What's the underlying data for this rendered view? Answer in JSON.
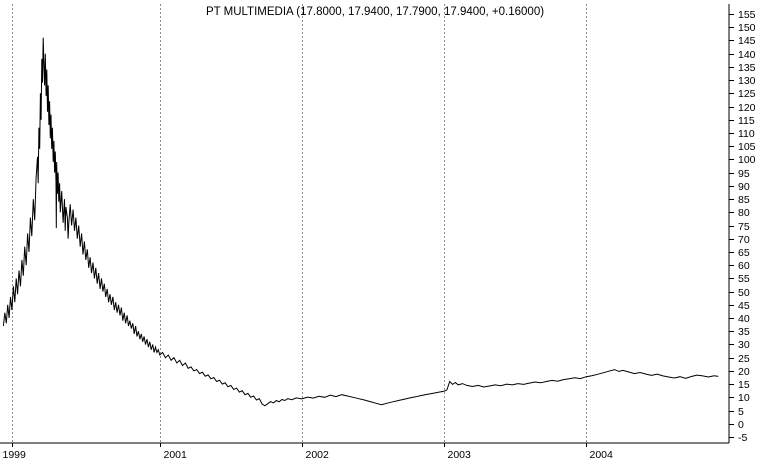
{
  "title": "PT MULTIMEDIA (17.8000, 17.9400, 17.7900, 17.9400, +0.16000)",
  "colors": {
    "background": "#ffffff",
    "line": "#000000",
    "grid": "#8f8f8f",
    "axis": "#000000",
    "text": "#000000"
  },
  "quote": {
    "symbol": "PT MULTIMEDIA",
    "open": "17.8000",
    "high": "17.9400",
    "low": "17.7900",
    "close": "17.9400",
    "change": "+0.16000"
  },
  "chart_data": {
    "type": "line",
    "title": "PT MULTIMEDIA (17.8000, 17.9400, 17.7900, 17.9400, +0.16000)",
    "xlabel": "",
    "ylabel": "",
    "grid": "vertical-dashed",
    "legend": "none",
    "x_axis": {
      "range": [
        1999.876,
        2005.005
      ],
      "ticks": [
        {
          "label": "1999",
          "year": 1999.96
        },
        {
          "label": "2001",
          "year": 2001
        },
        {
          "label": "2002",
          "year": 2002
        },
        {
          "label": "2003",
          "year": 2003
        },
        {
          "label": "2004",
          "year": 2004
        }
      ]
    },
    "y_axis": {
      "min": -5,
      "max": 155,
      "step": 5,
      "tick_labels": [
        155,
        150,
        145,
        140,
        135,
        130,
        125,
        120,
        115,
        110,
        105,
        100,
        95,
        90,
        85,
        80,
        75,
        70,
        65,
        60,
        55,
        50,
        45,
        40,
        35,
        30,
        25,
        20,
        15,
        10,
        5,
        0,
        -5
      ]
    },
    "series": [
      {
        "name": "PT MULTIMEDIA",
        "points": [
          [
            1999.9,
            37
          ],
          [
            1999.91,
            42
          ],
          [
            1999.92,
            38
          ],
          [
            1999.93,
            45
          ],
          [
            1999.94,
            40
          ],
          [
            1999.95,
            48
          ],
          [
            1999.96,
            43
          ],
          [
            1999.97,
            52
          ],
          [
            1999.98,
            46
          ],
          [
            1999.99,
            55
          ],
          [
            2000.0,
            49
          ],
          [
            2000.01,
            58
          ],
          [
            2000.02,
            52
          ],
          [
            2000.03,
            62
          ],
          [
            2000.04,
            56
          ],
          [
            2000.05,
            67
          ],
          [
            2000.06,
            60
          ],
          [
            2000.07,
            72
          ],
          [
            2000.08,
            65
          ],
          [
            2000.09,
            78
          ],
          [
            2000.1,
            71
          ],
          [
            2000.11,
            85
          ],
          [
            2000.12,
            77
          ],
          [
            2000.13,
            93
          ],
          [
            2000.14,
            101
          ],
          [
            2000.145,
            91
          ],
          [
            2000.15,
            112
          ],
          [
            2000.155,
            104
          ],
          [
            2000.16,
            125
          ],
          [
            2000.165,
            115
          ],
          [
            2000.17,
            138
          ],
          [
            2000.175,
            129
          ],
          [
            2000.18,
            146
          ],
          [
            2000.185,
            136
          ],
          [
            2000.19,
            128
          ],
          [
            2000.195,
            140
          ],
          [
            2000.2,
            124
          ],
          [
            2000.205,
            134
          ],
          [
            2000.21,
            118
          ],
          [
            2000.215,
            128
          ],
          [
            2000.22,
            113
          ],
          [
            2000.225,
            122
          ],
          [
            2000.23,
            108
          ],
          [
            2000.235,
            117
          ],
          [
            2000.24,
            104
          ],
          [
            2000.245,
            112
          ],
          [
            2000.25,
            99
          ],
          [
            2000.255,
            107
          ],
          [
            2000.26,
            95
          ],
          [
            2000.265,
            103
          ],
          [
            2000.27,
            91
          ],
          [
            2000.272,
            74
          ],
          [
            2000.275,
            99
          ],
          [
            2000.28,
            87
          ],
          [
            2000.285,
            95
          ],
          [
            2000.29,
            84
          ],
          [
            2000.295,
            91
          ],
          [
            2000.3,
            80
          ],
          [
            2000.31,
            88
          ],
          [
            2000.32,
            76
          ],
          [
            2000.33,
            85
          ],
          [
            2000.335,
            73
          ],
          [
            2000.34,
            82
          ],
          [
            2000.35,
            78
          ],
          [
            2000.355,
            70
          ],
          [
            2000.36,
            76
          ],
          [
            2000.37,
            83
          ],
          [
            2000.38,
            75
          ],
          [
            2000.39,
            81
          ],
          [
            2000.4,
            73
          ],
          [
            2000.41,
            78
          ],
          [
            2000.42,
            70
          ],
          [
            2000.43,
            75
          ],
          [
            2000.44,
            67
          ],
          [
            2000.45,
            72
          ],
          [
            2000.46,
            64
          ],
          [
            2000.47,
            69
          ],
          [
            2000.48,
            62
          ],
          [
            2000.49,
            66
          ],
          [
            2000.5,
            59
          ],
          [
            2000.51,
            63
          ],
          [
            2000.52,
            57
          ],
          [
            2000.53,
            61
          ],
          [
            2000.54,
            55
          ],
          [
            2000.55,
            59
          ],
          [
            2000.56,
            53
          ],
          [
            2000.57,
            57
          ],
          [
            2000.58,
            51
          ],
          [
            2000.59,
            55
          ],
          [
            2000.6,
            50
          ],
          [
            2000.61,
            53
          ],
          [
            2000.62,
            48
          ],
          [
            2000.63,
            51
          ],
          [
            2000.64,
            46
          ],
          [
            2000.65,
            49
          ],
          [
            2000.66,
            45
          ],
          [
            2000.67,
            48
          ],
          [
            2000.68,
            43
          ],
          [
            2000.69,
            46
          ],
          [
            2000.7,
            42
          ],
          [
            2000.71,
            45
          ],
          [
            2000.72,
            41
          ],
          [
            2000.73,
            44
          ],
          [
            2000.74,
            39
          ],
          [
            2000.75,
            42
          ],
          [
            2000.76,
            38
          ],
          [
            2000.77,
            41
          ],
          [
            2000.78,
            37
          ],
          [
            2000.79,
            39
          ],
          [
            2000.8,
            36
          ],
          [
            2000.81,
            38
          ],
          [
            2000.82,
            34
          ],
          [
            2000.83,
            37
          ],
          [
            2000.84,
            33
          ],
          [
            2000.85,
            35
          ],
          [
            2000.86,
            32
          ],
          [
            2000.87,
            34
          ],
          [
            2000.88,
            31
          ],
          [
            2000.89,
            33
          ],
          [
            2000.9,
            30
          ],
          [
            2000.91,
            32
          ],
          [
            2000.92,
            29
          ],
          [
            2000.93,
            31
          ],
          [
            2000.94,
            28
          ],
          [
            2000.95,
            30
          ],
          [
            2000.96,
            27
          ],
          [
            2000.97,
            29
          ],
          [
            2000.98,
            27
          ],
          [
            2000.99,
            28
          ],
          [
            2001.0,
            26
          ],
          [
            2001.02,
            27
          ],
          [
            2001.04,
            25
          ],
          [
            2001.06,
            26
          ],
          [
            2001.08,
            24
          ],
          [
            2001.1,
            25
          ],
          [
            2001.12,
            23
          ],
          [
            2001.14,
            24
          ],
          [
            2001.16,
            22
          ],
          [
            2001.18,
            23
          ],
          [
            2001.2,
            21
          ],
          [
            2001.22,
            21.5
          ],
          [
            2001.24,
            20
          ],
          [
            2001.26,
            20.5
          ],
          [
            2001.28,
            19
          ],
          [
            2001.3,
            19.5
          ],
          [
            2001.32,
            18
          ],
          [
            2001.34,
            18.5
          ],
          [
            2001.36,
            17
          ],
          [
            2001.38,
            17.5
          ],
          [
            2001.4,
            16
          ],
          [
            2001.42,
            16.5
          ],
          [
            2001.44,
            15
          ],
          [
            2001.46,
            15.5
          ],
          [
            2001.48,
            14
          ],
          [
            2001.5,
            14.5
          ],
          [
            2001.52,
            13
          ],
          [
            2001.54,
            13.5
          ],
          [
            2001.56,
            12
          ],
          [
            2001.58,
            12.5
          ],
          [
            2001.6,
            11
          ],
          [
            2001.62,
            11.5
          ],
          [
            2001.64,
            10
          ],
          [
            2001.66,
            10.5
          ],
          [
            2001.68,
            9
          ],
          [
            2001.7,
            9.5
          ],
          [
            2001.72,
            7.5
          ],
          [
            2001.74,
            6.8
          ],
          [
            2001.76,
            7.6
          ],
          [
            2001.78,
            8.4
          ],
          [
            2001.8,
            7.9
          ],
          [
            2001.82,
            8.8
          ],
          [
            2001.84,
            8.3
          ],
          [
            2001.86,
            9.2
          ],
          [
            2001.88,
            8.8
          ],
          [
            2001.9,
            9.5
          ],
          [
            2001.93,
            9.1
          ],
          [
            2001.96,
            9.8
          ],
          [
            2002.0,
            9.4
          ],
          [
            2002.04,
            10.1
          ],
          [
            2002.08,
            9.7
          ],
          [
            2002.12,
            10.4
          ],
          [
            2002.16,
            10.0
          ],
          [
            2002.2,
            10.8
          ],
          [
            2002.24,
            10.3
          ],
          [
            2002.28,
            11.0
          ],
          [
            2002.32,
            10.5
          ],
          [
            2002.36,
            10.0
          ],
          [
            2002.4,
            9.5
          ],
          [
            2002.44,
            9.0
          ],
          [
            2002.48,
            8.4
          ],
          [
            2002.52,
            7.8
          ],
          [
            2002.56,
            7.2
          ],
          [
            2002.6,
            7.8
          ],
          [
            2002.64,
            8.3
          ],
          [
            2002.68,
            8.8
          ],
          [
            2002.72,
            9.3
          ],
          [
            2002.76,
            9.8
          ],
          [
            2002.8,
            10.2
          ],
          [
            2002.84,
            10.7
          ],
          [
            2002.88,
            11.1
          ],
          [
            2002.92,
            11.5
          ],
          [
            2002.96,
            11.9
          ],
          [
            2003.0,
            12.3
          ],
          [
            2003.02,
            12.8
          ],
          [
            2003.04,
            16.0
          ],
          [
            2003.06,
            14.9
          ],
          [
            2003.08,
            15.6
          ],
          [
            2003.1,
            14.7
          ],
          [
            2003.13,
            15.2
          ],
          [
            2003.16,
            14.5
          ],
          [
            2003.2,
            14.1
          ],
          [
            2003.24,
            14.5
          ],
          [
            2003.28,
            13.9
          ],
          [
            2003.32,
            14.3
          ],
          [
            2003.36,
            14.7
          ],
          [
            2003.4,
            14.4
          ],
          [
            2003.44,
            15.0
          ],
          [
            2003.48,
            14.7
          ],
          [
            2003.52,
            15.2
          ],
          [
            2003.56,
            14.9
          ],
          [
            2003.6,
            15.4
          ],
          [
            2003.64,
            15.8
          ],
          [
            2003.68,
            15.5
          ],
          [
            2003.72,
            16.0
          ],
          [
            2003.76,
            16.4
          ],
          [
            2003.8,
            16.1
          ],
          [
            2003.84,
            16.7
          ],
          [
            2003.88,
            17.0
          ],
          [
            2003.92,
            17.4
          ],
          [
            2003.96,
            17.1
          ],
          [
            2004.0,
            17.8
          ],
          [
            2004.04,
            18.2
          ],
          [
            2004.08,
            18.7
          ],
          [
            2004.12,
            19.3
          ],
          [
            2004.16,
            19.9
          ],
          [
            2004.2,
            20.5
          ],
          [
            2004.23,
            19.8
          ],
          [
            2004.26,
            20.2
          ],
          [
            2004.3,
            19.6
          ],
          [
            2004.34,
            19.0
          ],
          [
            2004.38,
            19.4
          ],
          [
            2004.42,
            18.8
          ],
          [
            2004.46,
            18.3
          ],
          [
            2004.5,
            18.8
          ],
          [
            2004.54,
            18.1
          ],
          [
            2004.58,
            17.7
          ],
          [
            2004.62,
            17.3
          ],
          [
            2004.66,
            17.8
          ],
          [
            2004.7,
            17.2
          ],
          [
            2004.74,
            17.9
          ],
          [
            2004.78,
            18.4
          ],
          [
            2004.82,
            18.1
          ],
          [
            2004.86,
            17.7
          ],
          [
            2004.9,
            18.2
          ],
          [
            2004.93,
            17.94
          ]
        ]
      }
    ]
  }
}
